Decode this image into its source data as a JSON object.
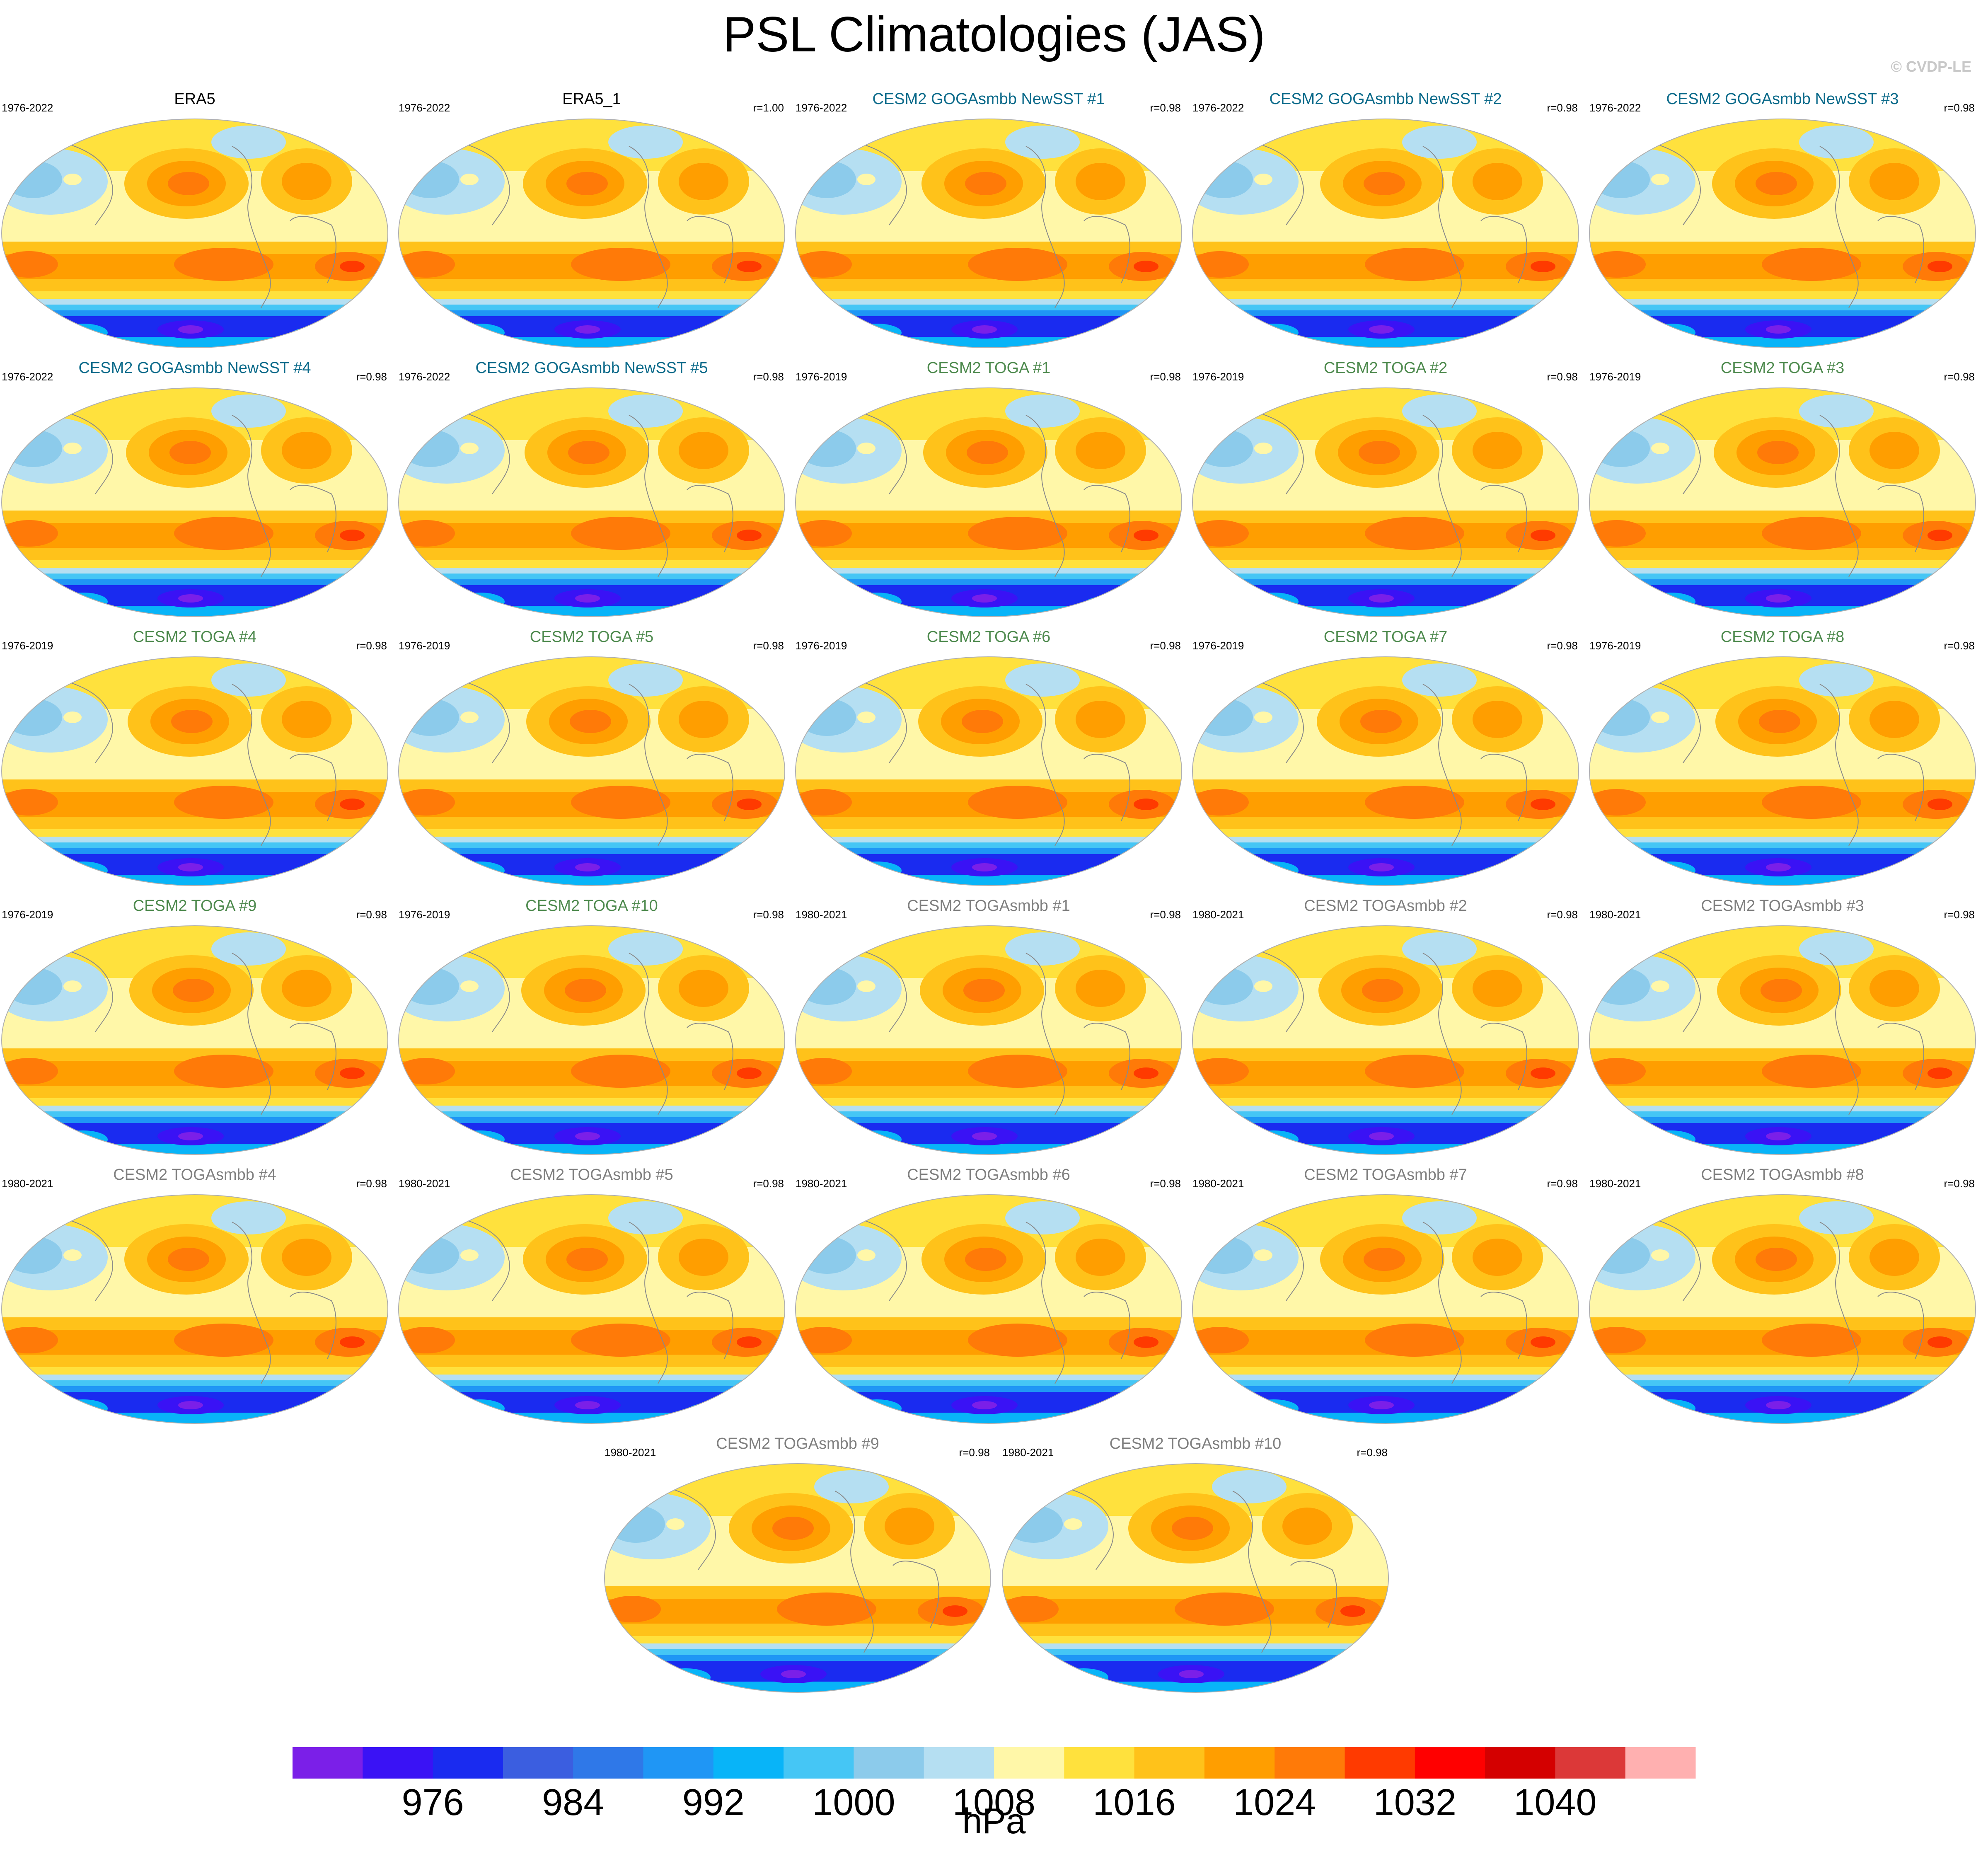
{
  "title": "PSL Climatologies (JAS)",
  "credit": "© CVDP-LE",
  "colors": {
    "levels": [
      "#7b1fe8",
      "#3a12f5",
      "#1a2bf0",
      "#3b5ee0",
      "#2f78e8",
      "#1f96f5",
      "#08b4f8",
      "#45c6f5",
      "#8ccbeb",
      "#b5dff2",
      "#fff7a8",
      "#ffe13d",
      "#ffc21a",
      "#ff9e00",
      "#ff7a08",
      "#ff3a00",
      "#ff0000",
      "#d40000",
      "#dc3838",
      "#ffb0b0"
    ],
    "title_obs": "#000000",
    "title_goga": "#0b6a8a",
    "title_toga": "#4e8a4e",
    "title_togasmbb": "#7f7f7f",
    "coast": "#8a8a8a"
  },
  "panels": [
    {
      "title": "ERA5",
      "years": "1976-2022",
      "r": "",
      "group": "obs"
    },
    {
      "title": "ERA5_1",
      "years": "1976-2022",
      "r": "r=1.00",
      "group": "obs"
    },
    {
      "title": "CESM2 GOGAsmbb NewSST #1",
      "years": "1976-2022",
      "r": "r=0.98",
      "group": "goga"
    },
    {
      "title": "CESM2 GOGAsmbb NewSST #2",
      "years": "1976-2022",
      "r": "r=0.98",
      "group": "goga"
    },
    {
      "title": "CESM2 GOGAsmbb NewSST #3",
      "years": "1976-2022",
      "r": "r=0.98",
      "group": "goga"
    },
    {
      "title": "CESM2 GOGAsmbb NewSST #4",
      "years": "1976-2022",
      "r": "r=0.98",
      "group": "goga"
    },
    {
      "title": "CESM2 GOGAsmbb NewSST #5",
      "years": "1976-2022",
      "r": "r=0.98",
      "group": "goga"
    },
    {
      "title": "CESM2 TOGA #1",
      "years": "1976-2019",
      "r": "r=0.98",
      "group": "toga"
    },
    {
      "title": "CESM2 TOGA #2",
      "years": "1976-2019",
      "r": "r=0.98",
      "group": "toga"
    },
    {
      "title": "CESM2 TOGA #3",
      "years": "1976-2019",
      "r": "r=0.98",
      "group": "toga"
    },
    {
      "title": "CESM2 TOGA #4",
      "years": "1976-2019",
      "r": "r=0.98",
      "group": "toga"
    },
    {
      "title": "CESM2 TOGA #5",
      "years": "1976-2019",
      "r": "r=0.98",
      "group": "toga"
    },
    {
      "title": "CESM2 TOGA #6",
      "years": "1976-2019",
      "r": "r=0.98",
      "group": "toga"
    },
    {
      "title": "CESM2 TOGA #7",
      "years": "1976-2019",
      "r": "r=0.98",
      "group": "toga"
    },
    {
      "title": "CESM2 TOGA #8",
      "years": "1976-2019",
      "r": "r=0.98",
      "group": "toga"
    },
    {
      "title": "CESM2 TOGA #9",
      "years": "1976-2019",
      "r": "r=0.98",
      "group": "toga"
    },
    {
      "title": "CESM2 TOGA #10",
      "years": "1976-2019",
      "r": "r=0.98",
      "group": "toga"
    },
    {
      "title": "CESM2 TOGAsmbb #1",
      "years": "1980-2021",
      "r": "r=0.98",
      "group": "togasmbb"
    },
    {
      "title": "CESM2 TOGAsmbb #2",
      "years": "1980-2021",
      "r": "r=0.98",
      "group": "togasmbb"
    },
    {
      "title": "CESM2 TOGAsmbb #3",
      "years": "1980-2021",
      "r": "r=0.98",
      "group": "togasmbb"
    },
    {
      "title": "CESM2 TOGAsmbb #4",
      "years": "1980-2021",
      "r": "r=0.98",
      "group": "togasmbb"
    },
    {
      "title": "CESM2 TOGAsmbb #5",
      "years": "1980-2021",
      "r": "r=0.98",
      "group": "togasmbb"
    },
    {
      "title": "CESM2 TOGAsmbb #6",
      "years": "1980-2021",
      "r": "r=0.98",
      "group": "togasmbb"
    },
    {
      "title": "CESM2 TOGAsmbb #7",
      "years": "1980-2021",
      "r": "r=0.98",
      "group": "togasmbb"
    },
    {
      "title": "CESM2 TOGAsmbb #8",
      "years": "1980-2021",
      "r": "r=0.98",
      "group": "togasmbb"
    },
    {
      "title": "CESM2 TOGAsmbb #9",
      "years": "1980-2021",
      "r": "r=0.98",
      "group": "togasmbb"
    },
    {
      "title": "CESM2 TOGAsmbb #10",
      "years": "1980-2021",
      "r": "r=0.98",
      "group": "togasmbb"
    }
  ],
  "chart_data": {
    "type": "heatmap",
    "title": "PSL Climatologies (JAS)",
    "colorbar": {
      "units": "hPa",
      "tick_labels": [
        "976",
        "984",
        "992",
        "1000",
        "1008",
        "1016",
        "1024",
        "1032",
        "1040"
      ],
      "tick_values": [
        976,
        984,
        992,
        1000,
        1008,
        1016,
        1024,
        1032,
        1040
      ],
      "level_step": 4,
      "range": [
        968,
        1048
      ],
      "n_colors": 20
    }
  }
}
